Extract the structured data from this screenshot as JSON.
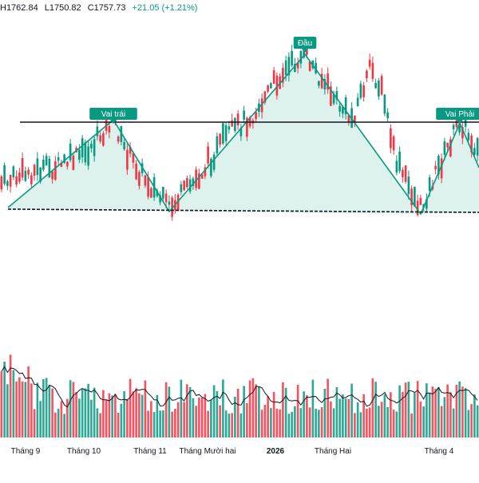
{
  "colors": {
    "up": "#089981",
    "down": "#f23645",
    "pattern_fill": "#d5efe8",
    "pattern_line": "#089981",
    "neckline": "#131722",
    "label_bg": "#089981",
    "ma_line": "#131722",
    "axis_text": "#131722"
  },
  "header": {
    "high": "H1762.84",
    "low": "L1750.82",
    "close": "C1757.73",
    "change": "+21.05 (+1.21%)"
  },
  "chart_data": {
    "type": "candlestick",
    "pattern": "head-and-shoulders",
    "pattern_labels": {
      "left_shoulder": "Vai trái",
      "head": "Đầu",
      "right_shoulder": "Vai Phải"
    },
    "x_axis_labels": [
      "Tháng 9",
      "Tháng 10",
      "Tháng 11",
      "Tháng Mười hai",
      "2026",
      "Tháng Hai",
      "Tháng 4"
    ],
    "last_close": 1757.73,
    "last_high": 1762.84,
    "last_low": 1750.82,
    "last_change": 21.05,
    "last_change_pct": 1.21,
    "volume_ma_shown": true,
    "grid": false
  }
}
